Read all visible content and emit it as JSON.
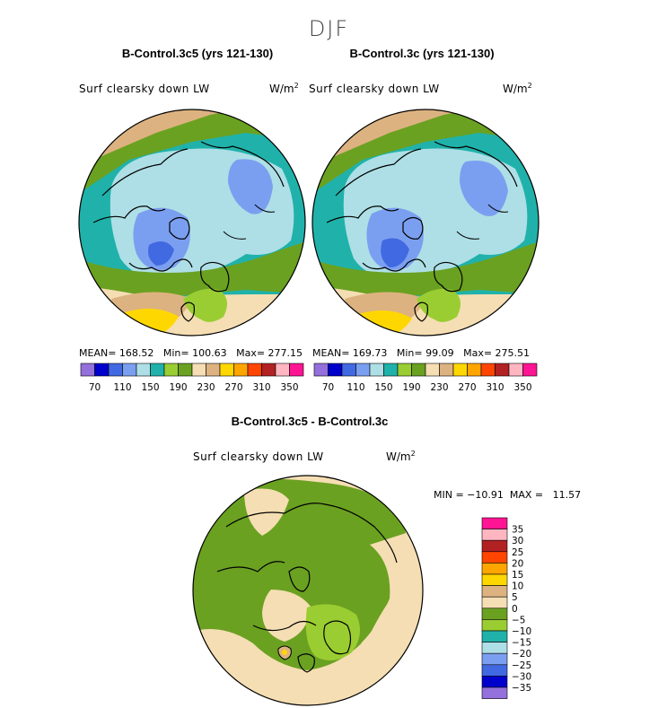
{
  "season": "DJF",
  "panels": [
    {
      "title": "B-Control.3c5 (yrs 121-130)",
      "variable": "Surf clearsky down LW",
      "units_base": "W/m",
      "units_exp": "2",
      "stats": "MEAN= 168.52   Min= 100.63   Max= 277.15"
    },
    {
      "title": "B-Control.3c (yrs 121-130)",
      "variable": "Surf clearsky down LW",
      "units_base": "W/m",
      "units_exp": "2",
      "stats": "MEAN= 169.73   Min= 99.09   Max= 275.51"
    }
  ],
  "diff_panel": {
    "title": "B-Control.3c5 - B-Control.3c",
    "variable": "Surf clearsky down LW",
    "units_base": "W/m",
    "units_exp": "2",
    "minmax": "MIN = −10.91  MAX =   11.57"
  },
  "chart_data": [
    {
      "type": "heatmap",
      "title": "B-Control.3c5 (yrs 121-130)",
      "projection": "north polar stereographic",
      "variable": "Surf clearsky down LW",
      "units": "W/m2",
      "mean": 168.52,
      "min": 100.63,
      "max": 277.15,
      "colorbar": {
        "levels": [
          70,
          90,
          110,
          130,
          150,
          170,
          190,
          210,
          230,
          250,
          270,
          290,
          310,
          330,
          350
        ],
        "tick_labels": [
          "70",
          "110",
          "150",
          "190",
          "230",
          "270",
          "310",
          "350"
        ],
        "colors": [
          "#9370db",
          "#0000cd",
          "#4169e1",
          "#7b9ff0",
          "#aedfe6",
          "#20b2aa",
          "#9acd32",
          "#6aa121",
          "#f5deb3",
          "#ddb281",
          "#ffd700",
          "#ffa500",
          "#ff4500",
          "#b22222",
          "#ffb6c1",
          "#ff1493"
        ]
      }
    },
    {
      "type": "heatmap",
      "title": "B-Control.3c (yrs 121-130)",
      "projection": "north polar stereographic",
      "variable": "Surf clearsky down LW",
      "units": "W/m2",
      "mean": 169.73,
      "min": 99.09,
      "max": 275.51,
      "colorbar": {
        "levels": [
          70,
          90,
          110,
          130,
          150,
          170,
          190,
          210,
          230,
          250,
          270,
          290,
          310,
          330,
          350
        ],
        "tick_labels": [
          "70",
          "110",
          "150",
          "190",
          "230",
          "270",
          "310",
          "350"
        ],
        "colors": [
          "#9370db",
          "#0000cd",
          "#4169e1",
          "#7b9ff0",
          "#aedfe6",
          "#20b2aa",
          "#9acd32",
          "#6aa121",
          "#f5deb3",
          "#ddb281",
          "#ffd700",
          "#ffa500",
          "#ff4500",
          "#b22222",
          "#ffb6c1",
          "#ff1493"
        ]
      }
    },
    {
      "type": "heatmap",
      "title": "B-Control.3c5 - B-Control.3c",
      "projection": "north polar stereographic",
      "variable": "Surf clearsky down LW",
      "units": "W/m2",
      "min": -10.91,
      "max": 11.57,
      "colorbar": {
        "levels": [
          35,
          30,
          25,
          20,
          15,
          10,
          5,
          0,
          -5,
          -10,
          -15,
          -20,
          -25,
          -30,
          -35
        ],
        "tick_labels": [
          "35",
          "30",
          "25",
          "20",
          "15",
          "10",
          "5",
          "0",
          "−5",
          "−10",
          "−15",
          "−20",
          "−25",
          "−30",
          "−35"
        ],
        "colors": [
          "#ff1493",
          "#ffb6c1",
          "#b22222",
          "#ff4500",
          "#ffa500",
          "#ffd700",
          "#ddb281",
          "#f5deb3",
          "#6aa121",
          "#9acd32",
          "#20b2aa",
          "#aedfe6",
          "#7b9ff0",
          "#4169e1",
          "#0000cd",
          "#9370db"
        ]
      }
    }
  ]
}
